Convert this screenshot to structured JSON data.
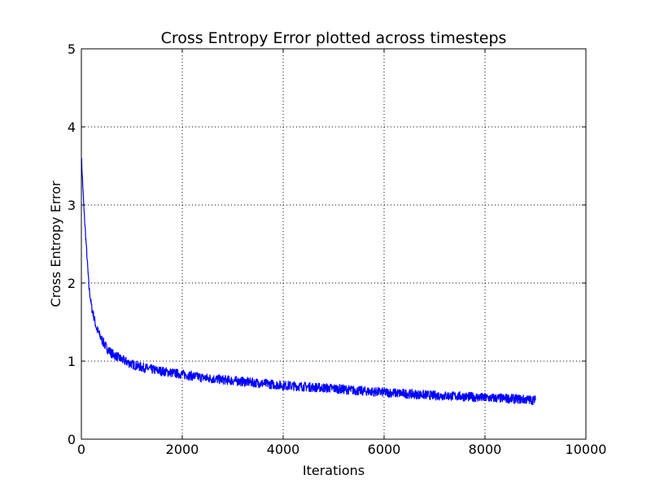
{
  "chart_data": {
    "type": "line",
    "title": "Cross Entropy Error plotted across timesteps",
    "xlabel": "Iterations",
    "ylabel": "Cross Entropy Error",
    "xlim": [
      0,
      10000
    ],
    "ylim": [
      0,
      5
    ],
    "xticks": [
      0,
      2000,
      4000,
      6000,
      8000,
      10000
    ],
    "yticks": [
      0,
      1,
      2,
      3,
      4,
      5
    ],
    "xtick_labels": [
      "0",
      "2000",
      "4000",
      "6000",
      "8000",
      "10000"
    ],
    "ytick_labels": [
      "0",
      "1",
      "2",
      "3",
      "4",
      "5"
    ],
    "grid": true,
    "line_color": "#0000ff",
    "series": [
      {
        "x": [
          0,
          50,
          100,
          150,
          200,
          300,
          400,
          500,
          600,
          800,
          1000,
          1200,
          1500,
          2000,
          2500,
          3000,
          3500,
          4000,
          4500,
          5000,
          5500,
          6000,
          6500,
          7000,
          7500,
          8000,
          8500,
          9000
        ],
        "y": [
          3.62,
          2.95,
          2.45,
          1.95,
          1.7,
          1.42,
          1.28,
          1.17,
          1.1,
          1.02,
          0.96,
          0.92,
          0.88,
          0.83,
          0.78,
          0.75,
          0.72,
          0.69,
          0.67,
          0.65,
          0.62,
          0.6,
          0.58,
          0.56,
          0.55,
          0.53,
          0.52,
          0.5
        ],
        "noise_amplitude": 0.06
      }
    ]
  }
}
